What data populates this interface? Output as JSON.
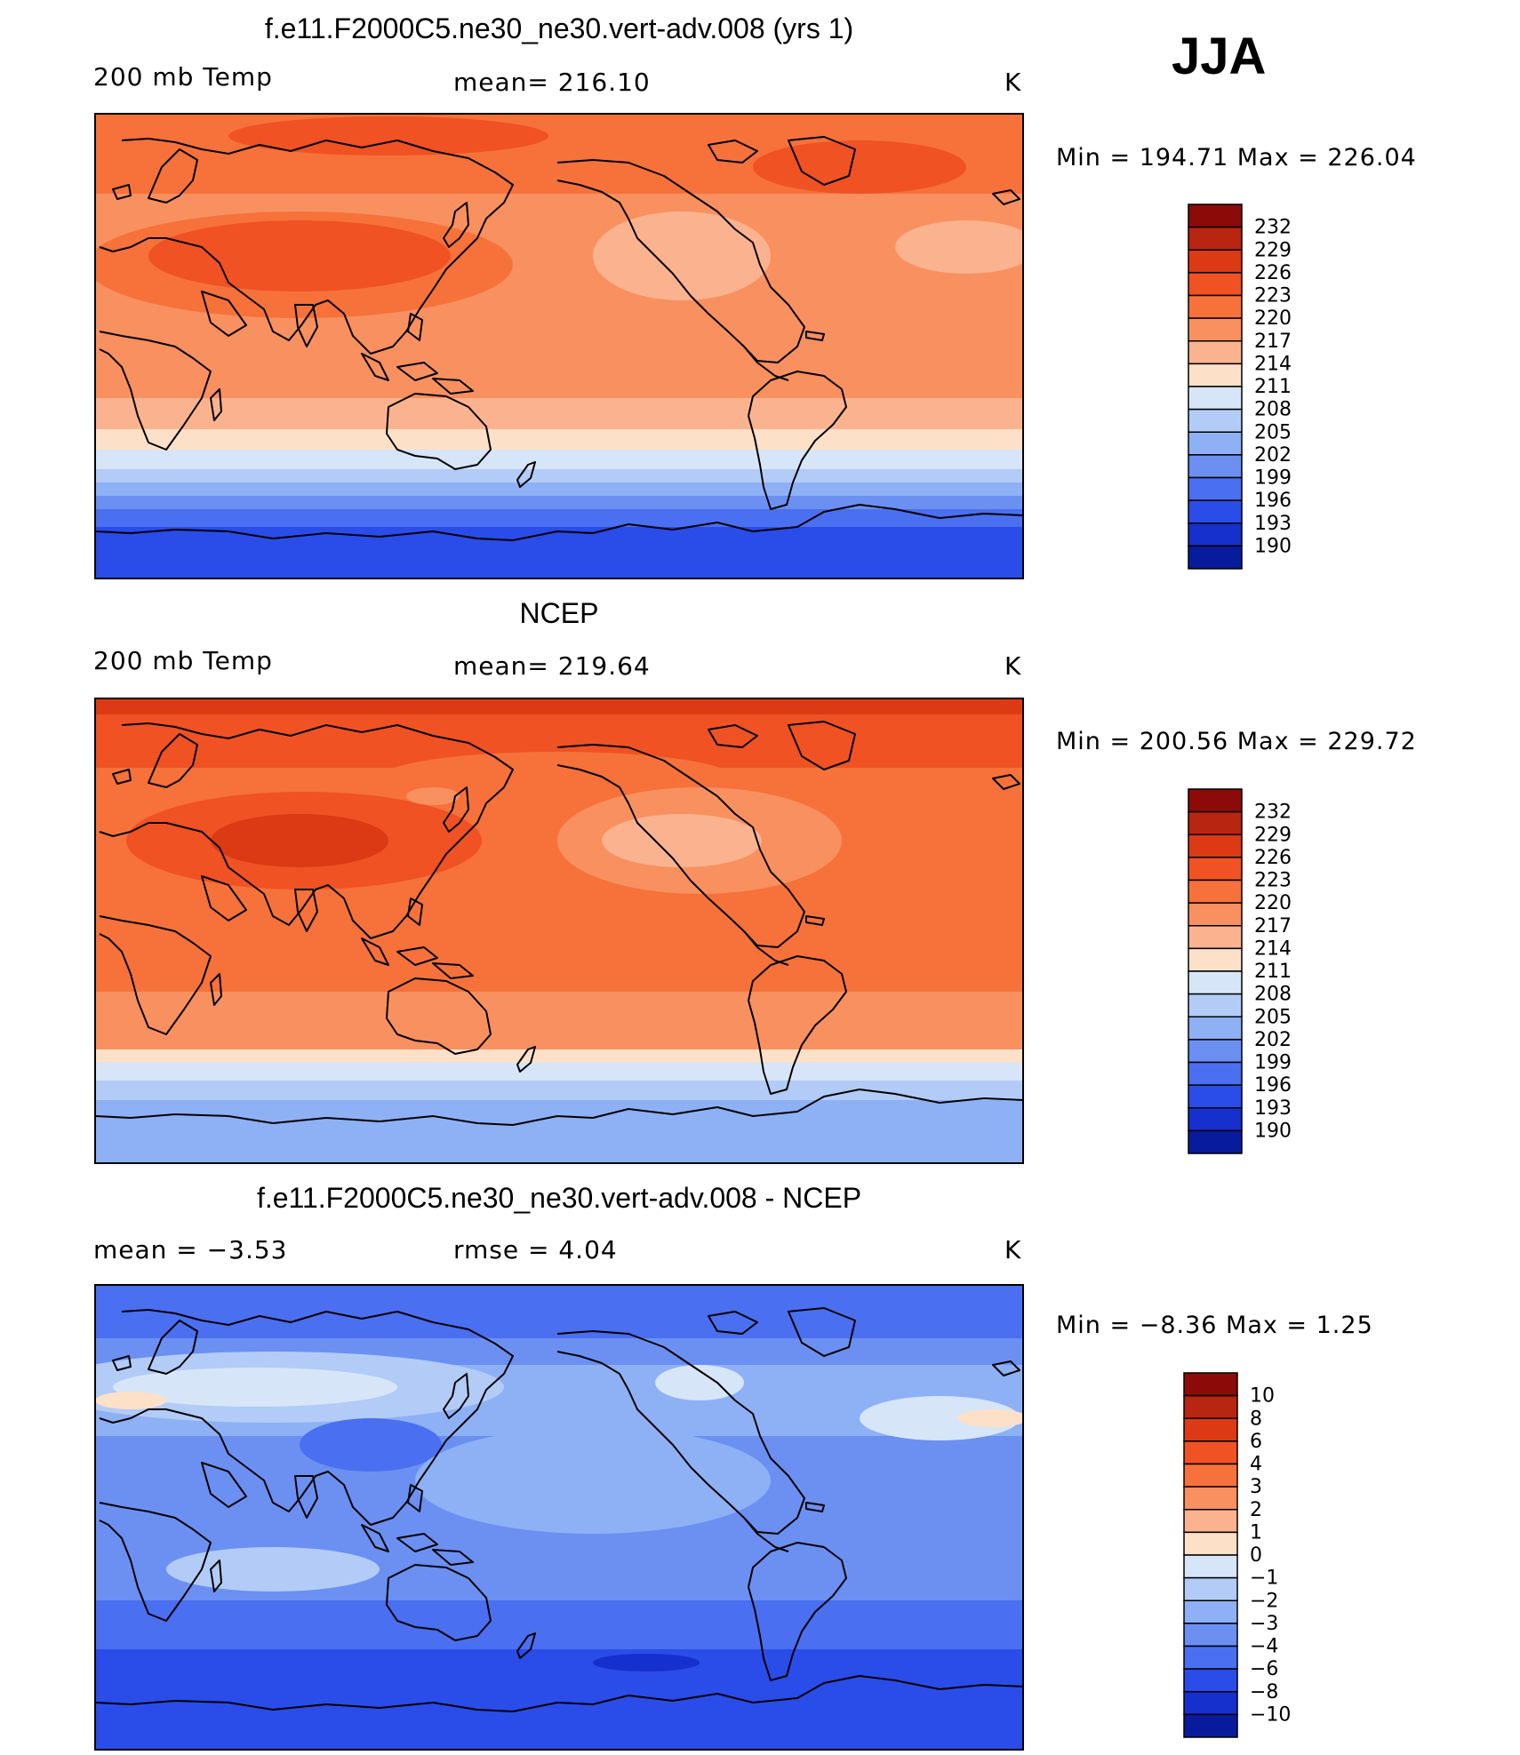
{
  "season": "JJA",
  "panels": [
    {
      "id": "model",
      "title": "f.e11.F2000C5.ne30_ne30.vert-adv.008 (yrs 1)",
      "left_label": "200 mb Temp",
      "center_label": "mean=  216.10",
      "units": "K",
      "minmax": "Min  =  194.71  Max  =  226.04",
      "colorbar": {
        "ticks": [
          "232",
          "229",
          "226",
          "223",
          "220",
          "217",
          "214",
          "211",
          "208",
          "205",
          "202",
          "199",
          "196",
          "193",
          "190"
        ],
        "colors": [
          "#8c0a07",
          "#b82510",
          "#dc3a14",
          "#f05224",
          "#f6723a",
          "#f9905f",
          "#fbb38f",
          "#fde0c8",
          "#d6e6f8",
          "#b2ccf7",
          "#8eb0f5",
          "#6b90f2",
          "#4a6ff0",
          "#2a4ce8",
          "#1530cc",
          "#081b9c"
        ]
      }
    },
    {
      "id": "obs",
      "title": "NCEP",
      "left_label": "200 mb Temp",
      "center_label": "mean=  219.64",
      "units": "K",
      "minmax": "Min  =  200.56  Max  =  229.72",
      "colorbar": {
        "ticks": [
          "232",
          "229",
          "226",
          "223",
          "220",
          "217",
          "214",
          "211",
          "208",
          "205",
          "202",
          "199",
          "196",
          "193",
          "190"
        ],
        "colors": [
          "#8c0a07",
          "#b82510",
          "#dc3a14",
          "#f05224",
          "#f6723a",
          "#f9905f",
          "#fbb38f",
          "#fde0c8",
          "#d6e6f8",
          "#b2ccf7",
          "#8eb0f5",
          "#6b90f2",
          "#4a6ff0",
          "#2a4ce8",
          "#1530cc",
          "#081b9c"
        ]
      }
    },
    {
      "id": "diff",
      "title": "f.e11.F2000C5.ne30_ne30.vert-adv.008 - NCEP",
      "left_label": "mean  =     −3.53",
      "center_label": "rmse  =      4.04",
      "units": "K",
      "minmax": "Min  =    −8.36  Max  =     1.25",
      "colorbar": {
        "ticks": [
          "10",
          "8",
          "6",
          "4",
          "3",
          "2",
          "1",
          "0",
          "−1",
          "−2",
          "−3",
          "−4",
          "−6",
          "−8",
          "−10"
        ],
        "colors": [
          "#8c0a07",
          "#b82510",
          "#dc3a14",
          "#f05224",
          "#f6723a",
          "#f9905f",
          "#fbb38f",
          "#fde0c8",
          "#d6e6f8",
          "#b2ccf7",
          "#8eb0f5",
          "#6b90f2",
          "#4a6ff0",
          "#2a4ce8",
          "#1530cc",
          "#081b9c"
        ]
      }
    }
  ]
}
